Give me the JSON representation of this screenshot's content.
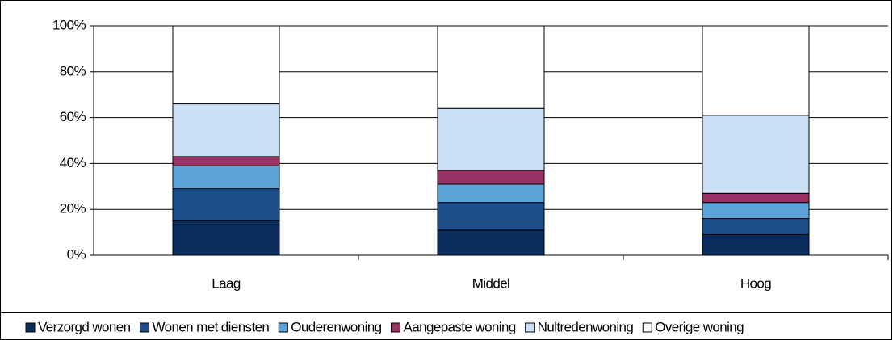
{
  "chart_data": {
    "type": "bar",
    "stacked": true,
    "categories": [
      "Laag",
      "Middel",
      "Hoog"
    ],
    "series": [
      {
        "name": "Verzorgd wonen",
        "color": "#0b2d5c",
        "values": [
          15,
          11,
          9
        ]
      },
      {
        "name": "Wonen met diensten",
        "color": "#1f4e8c",
        "values": [
          14,
          12,
          7
        ]
      },
      {
        "name": "Ouderenwoning",
        "color": "#5ba3d9",
        "values": [
          10,
          8,
          7
        ]
      },
      {
        "name": "Aangepaste woning",
        "color": "#993366",
        "values": [
          4,
          6,
          4
        ]
      },
      {
        "name": "Nultredenwoning",
        "color": "#cce0f5",
        "values": [
          23,
          27,
          34
        ]
      },
      {
        "name": "Overige woning",
        "color": "#ffffff",
        "values": [
          34,
          36,
          39
        ]
      }
    ],
    "ylim": [
      0,
      100
    ],
    "yticks": [
      {
        "value": 0,
        "label": "0%"
      },
      {
        "value": 20,
        "label": "20%"
      },
      {
        "value": 40,
        "label": "40%"
      },
      {
        "value": 60,
        "label": "60%"
      },
      {
        "value": 80,
        "label": "80%"
      },
      {
        "value": 100,
        "label": "100%"
      }
    ],
    "grid": true,
    "legend": "bottom"
  }
}
